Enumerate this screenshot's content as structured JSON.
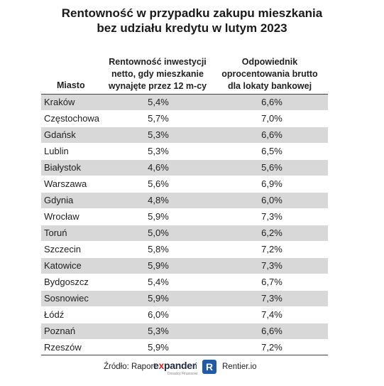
{
  "chart_data": {
    "type": "table",
    "title": "Rentowność w przypadku zakupu mieszkania bez udziału kredytu w lutym 2023",
    "title_lines": [
      "Rentowność w przypadku zakupu mieszkania",
      "bez udziału kredytu w lutym 2023"
    ],
    "columns": {
      "city": "Miasto",
      "net": "Rentowność inwestycji netto, gdy mieszkanie wynajęte przez 12 m-cy",
      "net_lines": [
        "Rentowność inwestycji",
        "netto, gdy mieszkanie",
        "wynajęte przez 12 m-cy"
      ],
      "gross": "Odpowiednik oprocentowania brutto dla lokaty bankowej",
      "gross_lines": [
        "Odpowiednik",
        "oprocentowania brutto",
        "dla lokaty bankowej"
      ]
    },
    "rows": [
      {
        "city": "Kraków",
        "net": "5,4%",
        "gross": "6,6%"
      },
      {
        "city": "Częstochowa",
        "net": "5,7%",
        "gross": "7,0%"
      },
      {
        "city": "Gdańsk",
        "net": "5,3%",
        "gross": "6,6%"
      },
      {
        "city": "Lublin",
        "net": "5,3%",
        "gross": "6,5%"
      },
      {
        "city": "Białystok",
        "net": "4,6%",
        "gross": "5,6%"
      },
      {
        "city": "Warszawa",
        "net": "5,6%",
        "gross": "6,9%"
      },
      {
        "city": "Gdynia",
        "net": "4,8%",
        "gross": "6,0%"
      },
      {
        "city": "Wrocław",
        "net": "5,9%",
        "gross": "7,3%"
      },
      {
        "city": "Toruń",
        "net": "5,0%",
        "gross": "6,2%"
      },
      {
        "city": "Szczecin",
        "net": "5,8%",
        "gross": "7,2%"
      },
      {
        "city": "Katowice",
        "net": "5,9%",
        "gross": "7,3%"
      },
      {
        "city": "Bydgoszcz",
        "net": "5,4%",
        "gross": "6,7%"
      },
      {
        "city": "Sosnowiec",
        "net": "5,9%",
        "gross": "7,3%"
      },
      {
        "city": "Łódź",
        "net": "6,0%",
        "gross": "7,4%"
      },
      {
        "city": "Poznań",
        "net": "5,3%",
        "gross": "6,6%"
      },
      {
        "city": "Rzeszów",
        "net": "5,9%",
        "gross": "7,2%"
      }
    ],
    "row_colors": [
      "#d8d8d8",
      "#ffffff"
    ]
  },
  "source": {
    "label": "Źródło: Raport",
    "expander_pre": "e",
    "expander_x": "x",
    "expander_post": "pander",
    "expander_sub": "Doradcy Finansowi",
    "and": "i",
    "rentier_icon": "R",
    "rentier": "Rentier.io"
  },
  "colors": {
    "expander_red": "#e2231a",
    "expander_navy": "#1f2a44",
    "rentier_blue": "#1f5ba8"
  }
}
